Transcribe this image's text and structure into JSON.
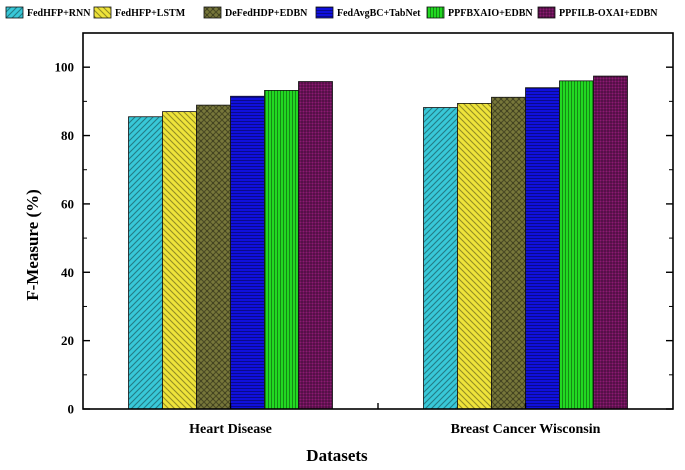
{
  "chart_data": {
    "type": "bar",
    "title": "",
    "xlabel": "Datasets",
    "ylabel": "F-Measure (%)",
    "ylim": [
      0,
      110
    ],
    "yticks": [
      0,
      20,
      40,
      60,
      80,
      100
    ],
    "grid": false,
    "legend_position": "top",
    "categories": [
      "Heart Disease",
      "Breast Cancer Wisconsin"
    ],
    "series": [
      {
        "name": "FedHFP+RNN",
        "values": [
          85.5,
          88.2
        ],
        "color": "#38c8d8",
        "pattern": "diag-dense"
      },
      {
        "name": "FedHFP+LSTM",
        "values": [
          87.0,
          89.4
        ],
        "color": "#eee33a",
        "pattern": "diag-wide"
      },
      {
        "name": "DeFedHDP+EDBN",
        "values": [
          88.9,
          91.2
        ],
        "color": "#77773a",
        "pattern": "crosshatch"
      },
      {
        "name": "FedAvgBC+TabNet",
        "values": [
          91.5,
          94.0
        ],
        "color": "#1010e0",
        "pattern": "horizontal"
      },
      {
        "name": "PPFBXAIO+EDBN",
        "values": [
          93.2,
          96.0
        ],
        "color": "#22dd22",
        "pattern": "vertical"
      },
      {
        "name": "PPFILB-OXAI+EDBN",
        "values": [
          95.8,
          97.4
        ],
        "color": "#8a1a72",
        "pattern": "grid"
      }
    ]
  }
}
